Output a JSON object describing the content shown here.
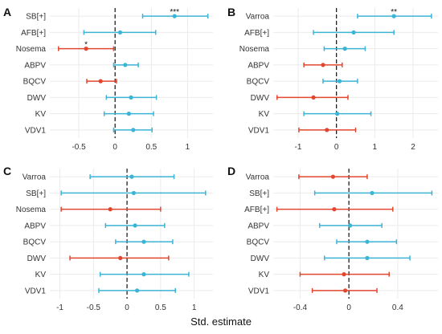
{
  "figure": {
    "xlabel": "Std. estimate"
  },
  "colors": {
    "positive": "#3cb4d6",
    "negative": "#e2462f",
    "zero_line": "#111111",
    "grid": "#ebebeb",
    "text": "#333333"
  },
  "chart_data": [
    {
      "type": "forest",
      "panel": "A",
      "categories": [
        "SB[+]",
        "AFB[+]",
        "Nosema",
        "ABPV",
        "BQCV",
        "DWV",
        "KV",
        "VDV1"
      ],
      "estimate": [
        0.82,
        0.07,
        -0.4,
        0.14,
        -0.2,
        0.22,
        0.19,
        0.25
      ],
      "ci_low": [
        0.38,
        -0.43,
        -0.78,
        -0.02,
        -0.39,
        -0.12,
        -0.15,
        -0.02
      ],
      "ci_high": [
        1.28,
        0.56,
        -0.02,
        0.32,
        0.02,
        0.57,
        0.53,
        0.51
      ],
      "annotations": [
        "***",
        "",
        "*",
        "",
        "",
        "",
        "",
        ""
      ],
      "xlim": [
        -0.9,
        1.35
      ],
      "xticks": [
        -0.5,
        0,
        0.5,
        1
      ],
      "xtick_labels": [
        "-0.5",
        "0",
        "0.5",
        "1"
      ]
    },
    {
      "type": "forest",
      "panel": "B",
      "categories": [
        "Varroa",
        "AFB[+]",
        "Nosema",
        "ABPV",
        "BQCV",
        "DWV",
        "KV",
        "VDV1"
      ],
      "estimate": [
        1.5,
        0.45,
        0.22,
        -0.35,
        0.08,
        -0.6,
        0.02,
        -0.25
      ],
      "ci_low": [
        0.55,
        -0.6,
        -0.32,
        -0.85,
        -0.35,
        -1.55,
        -0.85,
        -0.98
      ],
      "ci_high": [
        2.48,
        1.5,
        0.75,
        0.15,
        0.55,
        0.3,
        0.9,
        0.5
      ],
      "annotations": [
        "**",
        "",
        "",
        "",
        "",
        "",
        "",
        ""
      ],
      "xlim": [
        -1.65,
        2.65
      ],
      "xticks": [
        -1,
        0,
        1,
        2
      ],
      "xtick_labels": [
        "-1",
        "0",
        "1",
        "2"
      ]
    },
    {
      "type": "forest",
      "panel": "C",
      "categories": [
        "Varroa",
        "SB[+]",
        "Nosema",
        "ABPV",
        "BQCV",
        "DWV",
        "KV",
        "VDV1"
      ],
      "estimate": [
        0.07,
        0.1,
        -0.25,
        0.12,
        0.25,
        -0.1,
        0.25,
        0.15
      ],
      "ci_low": [
        -0.55,
        -0.98,
        -0.98,
        -0.32,
        -0.17,
        -0.85,
        -0.4,
        -0.42
      ],
      "ci_high": [
        0.7,
        1.17,
        0.5,
        0.56,
        0.68,
        0.62,
        0.92,
        0.72
      ],
      "annotations": [
        "",
        "",
        "",
        "",
        "",
        "",
        "",
        ""
      ],
      "xlim": [
        -1.15,
        1.28
      ],
      "xticks": [
        -1,
        -0.5,
        0,
        0.5,
        1
      ],
      "xtick_labels": [
        "-1",
        "-0.5",
        "0",
        "0.5",
        "1"
      ]
    },
    {
      "type": "forest",
      "panel": "D",
      "categories": [
        "Varroa",
        "SB[+]",
        "AFB[+]",
        "ABPV",
        "BQCV",
        "DWV",
        "KV",
        "VDV1"
      ],
      "estimate": [
        -0.13,
        0.19,
        -0.12,
        0.01,
        0.15,
        0.15,
        -0.04,
        -0.03
      ],
      "ci_low": [
        -0.41,
        -0.28,
        -0.59,
        -0.24,
        -0.1,
        -0.2,
        -0.4,
        -0.3
      ],
      "ci_high": [
        0.15,
        0.68,
        0.36,
        0.27,
        0.39,
        0.5,
        0.33,
        0.23
      ],
      "annotations": [
        "",
        "",
        "",
        "",
        "",
        "",
        "",
        ""
      ],
      "xlim": [
        -0.62,
        0.73
      ],
      "xticks": [
        -0.4,
        0,
        0.4
      ],
      "xtick_labels": [
        "-0.4",
        "0",
        "0.4"
      ]
    }
  ]
}
